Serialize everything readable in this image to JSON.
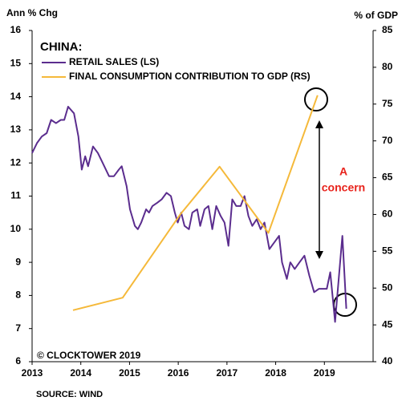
{
  "chart_data": {
    "type": "line",
    "y_axis_label": "Ann % Chg",
    "y2_axis_label": "% of GDP",
    "chart_title": "CHINA:",
    "annotation": [
      "A",
      "concern"
    ],
    "copyright": "© CLOCKTOWER 2019",
    "source": "SOURCE: WIND",
    "xlim": [
      2013,
      2020
    ],
    "xticks": [
      2013,
      2014,
      2015,
      2016,
      2017,
      2018,
      2019
    ],
    "ylim": [
      6,
      16
    ],
    "yticks": [
      6,
      7,
      8,
      9,
      10,
      11,
      12,
      13,
      14,
      15,
      16
    ],
    "y2lim": [
      40,
      85
    ],
    "y2ticks": [
      40,
      45,
      50,
      55,
      60,
      65,
      70,
      75,
      80,
      85
    ],
    "series": [
      {
        "name": "RETAIL SALES (LS)",
        "color": "#5b2d8e",
        "axis": "y",
        "x": [
          2013.0,
          2013.1,
          2013.2,
          2013.3,
          2013.39,
          2013.49,
          2013.59,
          2013.66,
          2013.74,
          2013.86,
          2013.95,
          2014.02,
          2014.09,
          2014.15,
          2014.25,
          2014.35,
          2014.45,
          2014.58,
          2014.68,
          2014.78,
          2014.84,
          2014.94,
          2015.01,
          2015.11,
          2015.17,
          2015.24,
          2015.34,
          2015.4,
          2015.47,
          2015.57,
          2015.66,
          2015.76,
          2015.85,
          2015.93,
          2015.99,
          2016.06,
          2016.13,
          2016.22,
          2016.29,
          2016.39,
          2016.45,
          2016.54,
          2016.62,
          2016.7,
          2016.78,
          2016.87,
          2016.95,
          2017.03,
          2017.11,
          2017.19,
          2017.28,
          2017.36,
          2017.44,
          2017.52,
          2017.61,
          2017.69,
          2017.77,
          2017.87,
          2017.97,
          2018.07,
          2018.13,
          2018.23,
          2018.3,
          2018.39,
          2018.49,
          2018.59,
          2018.69,
          2018.79,
          2018.89,
          2018.99,
          2019.05,
          2019.12,
          2019.22,
          2019.3,
          2019.37,
          2019.45
        ],
        "values": [
          12.3,
          12.6,
          12.8,
          12.9,
          13.3,
          13.2,
          13.3,
          13.3,
          13.7,
          13.5,
          12.8,
          11.8,
          12.2,
          11.9,
          12.5,
          12.3,
          12.0,
          11.6,
          11.6,
          11.8,
          11.9,
          11.3,
          10.6,
          10.1,
          10.0,
          10.2,
          10.6,
          10.5,
          10.7,
          10.8,
          10.9,
          11.1,
          11.0,
          10.5,
          10.2,
          10.5,
          10.1,
          10.0,
          10.5,
          10.6,
          10.1,
          10.6,
          10.7,
          10.0,
          10.7,
          10.4,
          10.2,
          9.5,
          10.9,
          10.7,
          10.7,
          11.0,
          10.4,
          10.1,
          10.3,
          10.0,
          10.2,
          9.4,
          9.6,
          9.8,
          9.0,
          8.5,
          9.0,
          8.8,
          9.0,
          9.2,
          8.6,
          8.1,
          8.2,
          8.2,
          8.2,
          8.7,
          7.2,
          8.6,
          9.8,
          7.6
        ]
      },
      {
        "name": "FINAL CONSUMPTION CONTRIBUTION TO GDP (RS)",
        "color": "#f5b93a",
        "axis": "y2",
        "x": [
          2013.84,
          2014.86,
          2016.04,
          2016.85,
          2017.85,
          2018.86
        ],
        "values": [
          47.0,
          48.7,
          60.0,
          66.5,
          57.5,
          76.2
        ]
      }
    ]
  }
}
